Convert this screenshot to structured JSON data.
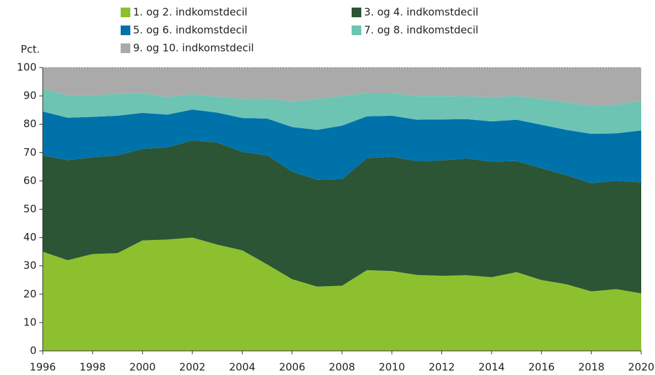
{
  "chart_data": {
    "type": "stacked_area",
    "ylabel": "Pct.",
    "x": [
      1996,
      1997,
      1998,
      1999,
      2000,
      2001,
      2002,
      2003,
      2004,
      2005,
      2006,
      2007,
      2008,
      2009,
      2010,
      2011,
      2012,
      2013,
      2014,
      2015,
      2016,
      2017,
      2018,
      2019,
      2020
    ],
    "xlim": [
      1996,
      2020
    ],
    "xticks": [
      1996,
      1998,
      2000,
      2002,
      2004,
      2006,
      2008,
      2010,
      2012,
      2014,
      2016,
      2018,
      2020
    ],
    "ylim": [
      0,
      100
    ],
    "yticks": [
      0,
      10,
      20,
      30,
      40,
      50,
      60,
      70,
      80,
      90,
      100
    ],
    "grid": false,
    "legend": "top",
    "series": [
      {
        "name": "1. og 2. indkomstdecil",
        "color": "#8dc02f",
        "values": [
          35,
          32,
          34.2,
          34.5,
          39,
          39.3,
          40,
          37.5,
          35.5,
          30.5,
          25.3,
          22.7,
          23,
          28.5,
          28.2,
          26.8,
          26.5,
          26.7,
          26,
          27.8,
          25,
          23.5,
          21,
          21.8,
          20.3
        ]
      },
      {
        "name": "3. og 4. indkomstdecil",
        "color": "#2b5535",
        "values": [
          34,
          35.3,
          34.1,
          34.5,
          32.3,
          32.5,
          34.3,
          36,
          34.7,
          38.5,
          38,
          37.7,
          37.6,
          39.5,
          40.3,
          40.2,
          40.7,
          41.2,
          40.8,
          39.2,
          39.5,
          38.5,
          38.2,
          38.2,
          39.2
        ]
      },
      {
        "name": "5. og 6. indkomstdecil",
        "color": "#0072aa",
        "values": [
          15.5,
          15,
          14.3,
          14,
          12.7,
          11.6,
          10.9,
          10.6,
          12,
          13,
          15.7,
          17.6,
          18.9,
          14.8,
          14.5,
          14.6,
          14.5,
          13.9,
          14.2,
          14.6,
          15.3,
          16,
          17.4,
          16.8,
          18.3
        ]
      },
      {
        "name": "7. og 8. indkomstdecil",
        "color": "#6dc4b3",
        "values": [
          7.8,
          8,
          7.7,
          7.7,
          7,
          6.2,
          5.4,
          5.6,
          6.8,
          7.1,
          9,
          11,
          10.5,
          8.2,
          8,
          8.4,
          8.3,
          8.1,
          8.5,
          8.4,
          9.2,
          9.7,
          9.9,
          10,
          10.6
        ]
      },
      {
        "name": "9. og 10. indkomstdecil",
        "color": "#aaaaaa",
        "values": [
          7.7,
          9.7,
          9.7,
          9.3,
          9,
          10.4,
          9.4,
          10.3,
          11,
          10.9,
          12,
          11,
          10,
          9,
          9,
          10,
          10,
          10.1,
          10.5,
          10,
          11,
          12.3,
          13.5,
          13.2,
          11.6
        ]
      }
    ]
  }
}
